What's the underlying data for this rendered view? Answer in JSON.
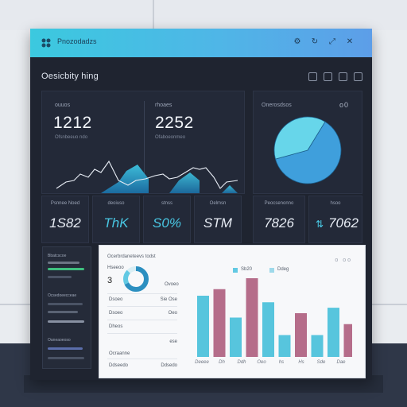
{
  "app": {
    "name": "Pnozodadzs"
  },
  "dashboard": {
    "title": "Oesicbity hing"
  },
  "kpi": [
    {
      "label": "ouuos",
      "value": "1212",
      "sub": "Ofsnbeeuo ndo"
    },
    {
      "label": "rhoaes",
      "value": "2252",
      "sub": "Ofaboeonmeo"
    }
  ],
  "pie": {
    "title": "Onerosdsos",
    "menu": "o0",
    "values": [
      62,
      38
    ],
    "colors": [
      "#3f9fdc",
      "#67d6ea"
    ]
  },
  "stats": [
    {
      "label": "Psnnee Noed",
      "value": "1S82",
      "color": "#e8edf5"
    },
    {
      "label": "deoiuso",
      "value": "ThK",
      "color": "#49c7e3"
    },
    {
      "label": "stnss",
      "value": "S0%",
      "color": "#49c7e3"
    },
    {
      "label": "Oelmsn",
      "value": "STM",
      "color": "#e8edf5"
    },
    {
      "label": "Peocsenonno",
      "value": "7826",
      "color": "#e8edf5"
    },
    {
      "label": "hsoo",
      "value": "7062",
      "color": "#e8edf5"
    }
  ],
  "stat_icon": "teal-arrows-icon",
  "sidebar": {
    "items": [
      "Bbatcscoe",
      "Ocsedoeecceae",
      "Oaneaoeoso"
    ]
  },
  "detail": {
    "title": "Ocerbrdaneteevs todst",
    "menu": "o oo",
    "ring_label": "Hseeoo",
    "ring_value": "3",
    "ring_side": "Ovoeo",
    "legend": [
      {
        "label": "Sb20",
        "color": "#62c9e3"
      },
      {
        "label": "Ddeg",
        "color": "#9ed9ea"
      }
    ],
    "rows": [
      {
        "left": "Dsoeo",
        "right": "Sie Ose"
      },
      {
        "left": "Dsoeo",
        "right": "Oeo"
      },
      {
        "left": "Dheos",
        "right": ""
      },
      {
        "left": "Ocraanne",
        "right": "ese"
      },
      {
        "left": "Ddseedo",
        "right": "Ddsedo"
      }
    ]
  },
  "chart_data": {
    "type": "bar",
    "categories": [
      "Deeee",
      "Dh",
      "Ddh",
      "Oeo",
      "hs",
      "Hs",
      "Sde",
      "Dae"
    ],
    "series": [
      {
        "values": [
          56,
          36,
          32,
          68,
          34,
          22,
          20,
          36
        ]
      },
      {
        "values": [
          0,
          0,
          0,
          0,
          0,
          0,
          0,
          0
        ]
      }
    ],
    "bars": [
      {
        "value": 56,
        "color": "#57c5dd"
      },
      {
        "value": 62,
        "color": "#b56d8a"
      },
      {
        "value": 36,
        "color": "#57c5dd"
      },
      {
        "value": 72,
        "color": "#b56d8a"
      },
      {
        "value": 50,
        "color": "#57c5dd"
      },
      {
        "value": 20,
        "color": "#57c5dd"
      },
      {
        "value": 40,
        "color": "#b56d8a"
      },
      {
        "value": 20,
        "color": "#57c5dd"
      },
      {
        "value": 45,
        "color": "#57c5dd"
      },
      {
        "value": 30,
        "color": "#b56d8a"
      }
    ],
    "ylim": [
      0,
      80
    ]
  }
}
